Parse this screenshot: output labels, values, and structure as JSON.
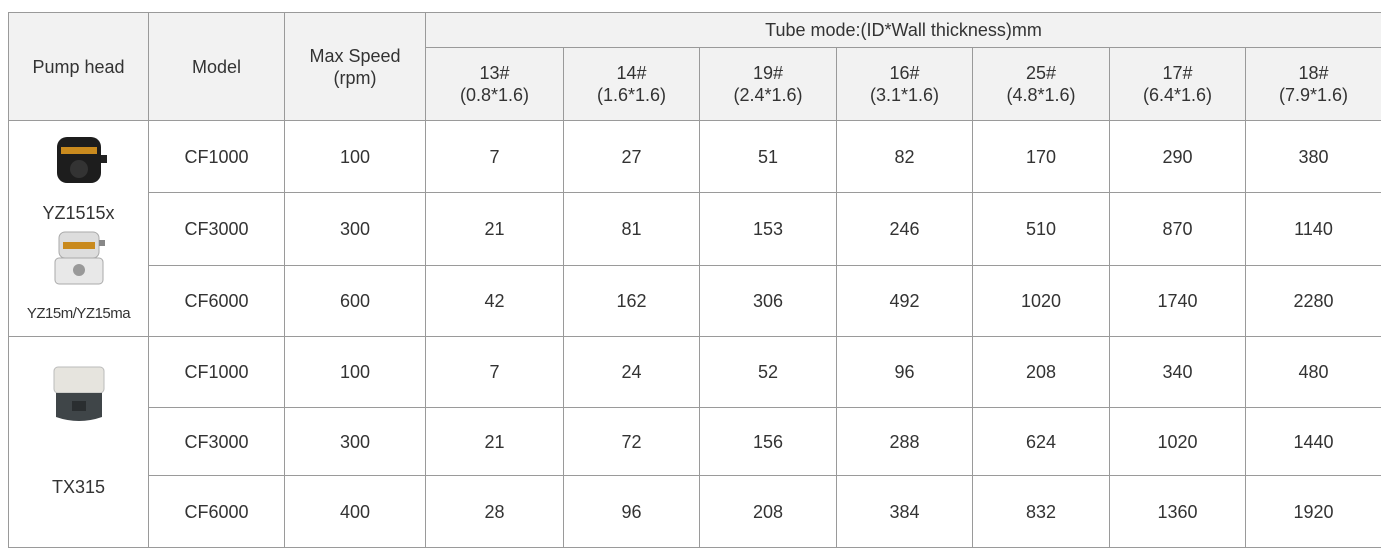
{
  "header": {
    "group_title": "Tube mode:(ID*Wall thickness)mm",
    "columns": [
      "Pump head",
      "Model",
      "Max Speed (rpm)"
    ],
    "tubes": [
      {
        "size": "13#",
        "dims": "(0.8*1.6)"
      },
      {
        "size": "14#",
        "dims": "(1.6*1.6)"
      },
      {
        "size": "19#",
        "dims": "(2.4*1.6)"
      },
      {
        "size": "16#",
        "dims": "(3.1*1.6)"
      },
      {
        "size": "25#",
        "dims": "(4.8*1.6)"
      },
      {
        "size": "17#",
        "dims": "(6.4*1.6)"
      },
      {
        "size": "18#",
        "dims": "(7.9*1.6)"
      }
    ]
  },
  "groups": [
    {
      "pump_heads": [
        "YZ1515x",
        "YZ15m/YZ15ma"
      ],
      "rows": [
        {
          "model": "CF1000",
          "speed": 100,
          "flows": [
            7,
            27,
            51,
            82,
            170,
            290,
            380
          ]
        },
        {
          "model": "CF3000",
          "speed": 300,
          "flows": [
            21,
            81,
            153,
            246,
            510,
            870,
            1140
          ]
        },
        {
          "model": "CF6000",
          "speed": 600,
          "flows": [
            42,
            162,
            306,
            492,
            1020,
            1740,
            2280
          ]
        }
      ]
    },
    {
      "pump_heads": [
        "TX315"
      ],
      "rows": [
        {
          "model": "CF1000",
          "speed": 100,
          "flows": [
            7,
            24,
            52,
            96,
            208,
            340,
            480
          ]
        },
        {
          "model": "CF3000",
          "speed": 300,
          "flows": [
            21,
            72,
            156,
            288,
            624,
            1020,
            1440
          ]
        },
        {
          "model": "CF6000",
          "speed": 400,
          "flows": [
            28,
            96,
            208,
            384,
            832,
            1360,
            1920
          ]
        }
      ]
    }
  ]
}
